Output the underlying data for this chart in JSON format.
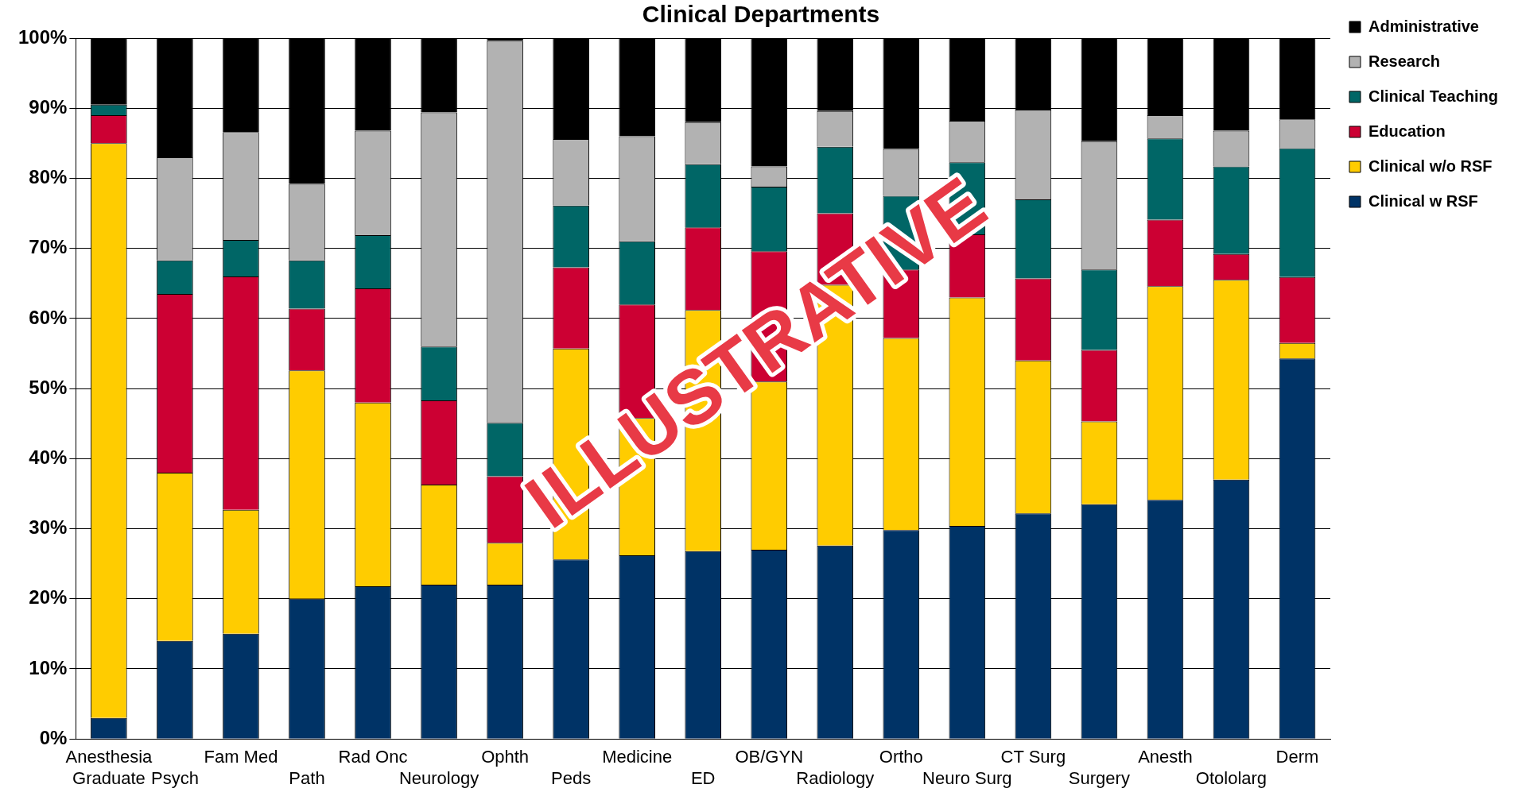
{
  "chart_data": {
    "type": "bar",
    "title": "Clinical Departments",
    "stacked": true,
    "categories": [
      "Anesthesia Graduate",
      "Psych",
      "Fam Med",
      "Path",
      "Rad Onc",
      "Neurology",
      "Ophth",
      "Peds",
      "Medicine",
      "ED",
      "OB/GYN",
      "Radiology",
      "Ortho",
      "Neuro Surg",
      "CT Surg",
      "Surgery",
      "Anesth",
      "Otololarg",
      "Derm"
    ],
    "series": [
      {
        "name": "Clinical w RSF",
        "color": "#003366",
        "values": [
          3,
          14,
          15,
          20,
          21.8,
          22,
          22,
          25.6,
          26.2,
          26.8,
          27,
          27.6,
          29.8,
          30.4,
          32.2,
          33.5,
          34.1,
          37,
          54.3
        ]
      },
      {
        "name": "Clinical w/o RSF",
        "color": "#ffcc00",
        "values": [
          82,
          24,
          17.7,
          32.6,
          26.2,
          14.3,
          6,
          30.1,
          19.6,
          34.4,
          24,
          37.2,
          27.4,
          32.6,
          21.8,
          11.8,
          30.5,
          28.5,
          2.2
        ]
      },
      {
        "name": "Education",
        "color": "#cc0033",
        "values": [
          4,
          25.5,
          33.3,
          8.8,
          16.3,
          12,
          9.5,
          11.6,
          16.2,
          11.8,
          18.6,
          10.2,
          9.8,
          9,
          11.7,
          10.2,
          9.5,
          3.7,
          9.4
        ]
      },
      {
        "name": "Clinical Teaching",
        "color": "#006666",
        "values": [
          1.5,
          4.8,
          5.2,
          6.9,
          7.6,
          7.7,
          7.6,
          8.8,
          9,
          9,
          9.2,
          9.5,
          10.5,
          10.3,
          11.3,
          11.5,
          11.6,
          12.5,
          18.4
        ]
      },
      {
        "name": "Research",
        "color": "#b2b2b2",
        "values": [
          0,
          14.7,
          15.4,
          10.9,
          14.9,
          33.4,
          54.5,
          9.5,
          15,
          6,
          2.9,
          5.1,
          6.7,
          5.9,
          12.8,
          18.3,
          3.3,
          5.1,
          4.1
        ]
      },
      {
        "name": "Administrative",
        "color": "#000000",
        "values": [
          9.5,
          17,
          13.4,
          20.8,
          13.2,
          10.6,
          0.4,
          14.4,
          14,
          12,
          18.3,
          10.4,
          15.8,
          11.8,
          10.2,
          14.7,
          11,
          13.2,
          11.6
        ]
      }
    ],
    "ylim": [
      0,
      100
    ],
    "yticks": [
      {
        "value": 0,
        "label": "0%"
      },
      {
        "value": 10,
        "label": "10%"
      },
      {
        "value": 20,
        "label": "20%"
      },
      {
        "value": 30,
        "label": "30%"
      },
      {
        "value": 40,
        "label": "40%"
      },
      {
        "value": 50,
        "label": "50%"
      },
      {
        "value": 60,
        "label": "60%"
      },
      {
        "value": 70,
        "label": "70%"
      },
      {
        "value": 80,
        "label": "80%"
      },
      {
        "value": 90,
        "label": "90%"
      },
      {
        "value": 100,
        "label": "100%"
      }
    ],
    "grid": "y",
    "legend": "top right",
    "annotations": [
      "ILLUSTRATIVE"
    ]
  }
}
